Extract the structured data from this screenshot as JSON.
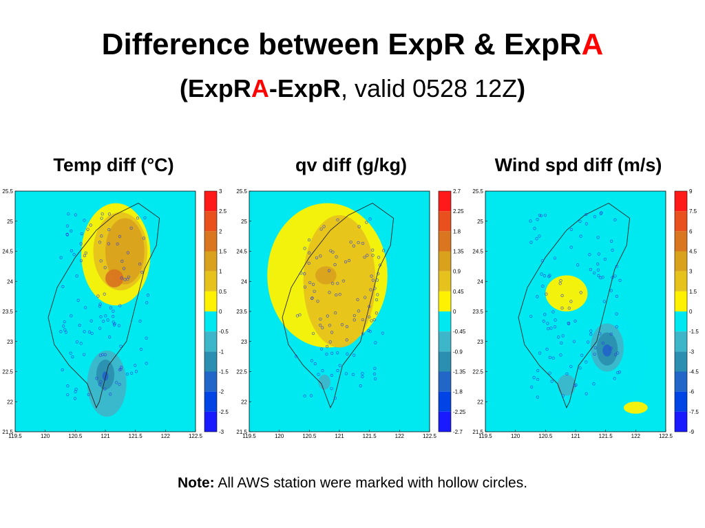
{
  "slide": {
    "title_main": "Difference between ExpR & ExpR",
    "title_highlight": "A",
    "subtitle_open": "(",
    "subtitle_expr1": "ExpR",
    "subtitle_highlight": "A",
    "subtitle_expr2": "-ExpR",
    "subtitle_rest": ", valid 0528 12Z",
    "subtitle_close": ")",
    "note_label": "Note:",
    "note_text": " All AWS station were marked with hollow circles.",
    "highlight_color": "#ff0000"
  },
  "chart_data": [
    {
      "type": "heatmap",
      "title": "Temp diff (°C)",
      "x_ticks": [
        "119.5",
        "120",
        "120.5",
        "121",
        "121.5",
        "122",
        "122.5"
      ],
      "y_ticks": [
        "25.5",
        "25",
        "24.5",
        "24",
        "23.5",
        "23",
        "22.5",
        "22",
        "21.5"
      ],
      "xlim": [
        119.5,
        122.5
      ],
      "ylim": [
        21.5,
        25.5
      ],
      "colorbar_levels": [
        "3",
        "2.5",
        "2",
        "1.5",
        "1",
        "0.5",
        "0",
        "-0.5",
        "-1",
        "-1.5",
        "-2",
        "-2.5",
        "-3"
      ],
      "colorbar_colors": [
        "#ff1a1a",
        "#e8501e",
        "#d9761f",
        "#d9a21c",
        "#e6c21c",
        "#fff200",
        "#00e8f0",
        "#3cb6c8",
        "#2a8fb0",
        "#2266c8",
        "#0044e6",
        "#1a1aff"
      ],
      "regions": [
        {
          "level": 0.5,
          "lon": [
            120.6,
            121.75
          ],
          "lat": [
            23.6,
            25.3
          ]
        },
        {
          "level": 1.0,
          "lon": [
            120.8,
            121.7
          ],
          "lat": [
            23.85,
            25.15
          ]
        },
        {
          "level": 1.5,
          "lon": [
            121.0,
            121.65
          ],
          "lat": [
            23.95,
            25.05
          ]
        },
        {
          "level": 2.0,
          "lon": [
            121.0,
            121.3
          ],
          "lat": [
            23.9,
            24.2
          ]
        },
        {
          "level": -1.0,
          "lon": [
            120.7,
            121.35
          ],
          "lat": [
            21.75,
            22.85
          ]
        },
        {
          "level": -1.5,
          "lon": [
            120.85,
            121.15
          ],
          "lat": [
            22.2,
            22.7
          ]
        },
        {
          "level": -2.0,
          "lon": [
            120.95,
            121.05
          ],
          "lat": [
            22.35,
            22.5
          ]
        }
      ]
    },
    {
      "type": "heatmap",
      "title": "qv diff (g/kg)",
      "x_ticks": [
        "119.5",
        "120",
        "120.5",
        "121",
        "121.5",
        "122",
        "122.5"
      ],
      "y_ticks": [
        "25.5",
        "25",
        "24.5",
        "24",
        "23.5",
        "23",
        "22.5",
        "22",
        "21.5"
      ],
      "xlim": [
        119.5,
        122.5
      ],
      "ylim": [
        21.5,
        25.5
      ],
      "colorbar_levels": [
        "2.7",
        "2.25",
        "1.8",
        "1.35",
        "0.9",
        "0.45",
        "0",
        "-0.45",
        "-0.9",
        "-1.35",
        "-1.8",
        "-2.25",
        "-2.7"
      ],
      "colorbar_colors": [
        "#ff1a1a",
        "#e8501e",
        "#d9761f",
        "#d9a21c",
        "#e6c21c",
        "#fff200",
        "#00e8f0",
        "#3cb6c8",
        "#2a8fb0",
        "#2266c8",
        "#0044e6",
        "#1a1aff"
      ],
      "regions": [
        {
          "level": 0.45,
          "lon": [
            119.8,
            121.8
          ],
          "lat": [
            22.9,
            25.3
          ]
        },
        {
          "level": 0.9,
          "lon": [
            120.4,
            121.6
          ],
          "lat": [
            22.9,
            25.1
          ]
        },
        {
          "level": 1.35,
          "lon": [
            120.6,
            120.95
          ],
          "lat": [
            23.95,
            24.25
          ]
        },
        {
          "level": -0.45,
          "lon": [
            120.45,
            121.05
          ],
          "lat": [
            21.85,
            22.85
          ]
        },
        {
          "level": -0.9,
          "lon": [
            120.65,
            120.85
          ],
          "lat": [
            22.2,
            22.45
          ]
        }
      ]
    },
    {
      "type": "heatmap",
      "title": "Wind spd diff (m/s)",
      "x_ticks": [
        "119.5",
        "120",
        "120.5",
        "121",
        "121.5",
        "122",
        "122.5"
      ],
      "y_ticks": [
        "25.5",
        "25",
        "24.5",
        "24",
        "23.5",
        "23",
        "22.5",
        "22",
        "21.5"
      ],
      "xlim": [
        119.5,
        122.5
      ],
      "ylim": [
        21.5,
        25.5
      ],
      "colorbar_levels": [
        "9",
        "7.5",
        "6",
        "4.5",
        "3",
        "1.5",
        "0",
        "-1.5",
        "-3",
        "-4.5",
        "-6",
        "-7.5",
        "-9"
      ],
      "colorbar_colors": [
        "#ff1a1a",
        "#e8501e",
        "#d9761f",
        "#d9a21c",
        "#e6c21c",
        "#fff200",
        "#00e8f0",
        "#3cb6c8",
        "#2a8fb0",
        "#2266c8",
        "#0044e6",
        "#1a1aff"
      ],
      "regions": [
        {
          "level": -1.5,
          "lon": [
            120.9,
            122.2
          ],
          "lat": [
            22.0,
            23.4
          ]
        },
        {
          "level": -3.0,
          "lon": [
            121.25,
            121.8
          ],
          "lat": [
            22.5,
            23.3
          ]
        },
        {
          "level": -4.5,
          "lon": [
            121.35,
            121.7
          ],
          "lat": [
            22.6,
            23.15
          ]
        },
        {
          "level": -6.0,
          "lon": [
            121.45,
            121.6
          ],
          "lat": [
            22.75,
            22.95
          ]
        },
        {
          "level": -1.5,
          "lon": [
            120.4,
            121.2
          ],
          "lat": [
            21.7,
            22.6
          ]
        },
        {
          "level": -3.0,
          "lon": [
            120.7,
            121.0
          ],
          "lat": [
            22.1,
            22.45
          ]
        },
        {
          "level": 1.5,
          "lon": [
            120.5,
            121.2
          ],
          "lat": [
            23.5,
            24.1
          ]
        },
        {
          "level": 1.5,
          "lon": [
            121.8,
            122.2
          ],
          "lat": [
            21.8,
            22.0
          ]
        }
      ]
    }
  ]
}
